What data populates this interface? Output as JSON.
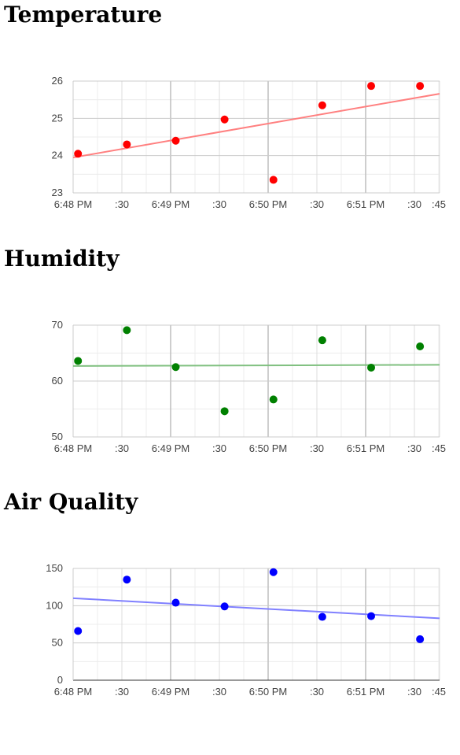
{
  "chart_data": [
    {
      "type": "scatter",
      "title": "Temperature",
      "x_labels": [
        "6:48 PM",
        ":30",
        "6:49 PM",
        ":30",
        "6:50 PM",
        ":30",
        "6:51 PM",
        ":30",
        ":45"
      ],
      "xlim": [
        "6:48:00 PM",
        "6:51:45 PM"
      ],
      "ylim": [
        23,
        26
      ],
      "y_ticks": [
        23,
        24,
        25,
        26
      ],
      "grid": true,
      "color": "#ff0000",
      "trendline_color": "#ff8080",
      "series": [
        {
          "x": [
            "6:48:03 PM",
            "6:48:33 PM",
            "6:49:03 PM",
            "6:49:33 PM",
            "6:50:03 PM",
            "6:50:33 PM",
            "6:51:03 PM",
            "6:51:33 PM"
          ],
          "y": [
            24.05,
            24.3,
            24.4,
            24.97,
            23.35,
            25.35,
            25.87,
            25.87
          ]
        }
      ],
      "trendline": {
        "type": "linear",
        "y_start": 23.95,
        "y_end": 25.66
      }
    },
    {
      "type": "scatter",
      "title": "Humidity",
      "x_labels": [
        "6:48 PM",
        ":30",
        "6:49 PM",
        ":30",
        "6:50 PM",
        ":30",
        "6:51 PM",
        ":30",
        ":45"
      ],
      "xlim": [
        "6:48:00 PM",
        "6:51:45 PM"
      ],
      "ylim": [
        50,
        70
      ],
      "y_ticks": [
        50,
        60,
        70
      ],
      "grid": true,
      "color": "#008000",
      "trendline_color": "#80c080",
      "series": [
        {
          "x": [
            "6:48:03 PM",
            "6:48:33 PM",
            "6:49:03 PM",
            "6:49:33 PM",
            "6:50:03 PM",
            "6:50:33 PM",
            "6:51:03 PM",
            "6:51:33 PM"
          ],
          "y": [
            63.6,
            69.1,
            62.5,
            54.6,
            56.7,
            67.3,
            62.4,
            66.2
          ]
        }
      ],
      "trendline": {
        "type": "linear",
        "y_start": 62.7,
        "y_end": 62.9
      }
    },
    {
      "type": "scatter",
      "title": "Air Quality",
      "x_labels": [
        "6:48 PM",
        ":30",
        "6:49 PM",
        ":30",
        "6:50 PM",
        ":30",
        "6:51 PM",
        ":30",
        ":45"
      ],
      "xlim": [
        "6:48:00 PM",
        "6:51:45 PM"
      ],
      "ylim": [
        0,
        150
      ],
      "y_ticks": [
        0,
        50,
        100,
        150
      ],
      "grid": true,
      "color": "#0000ff",
      "trendline_color": "#8080ff",
      "series": [
        {
          "x": [
            "6:48:03 PM",
            "6:48:33 PM",
            "6:49:03 PM",
            "6:49:33 PM",
            "6:50:03 PM",
            "6:50:33 PM",
            "6:51:03 PM",
            "6:51:33 PM"
          ],
          "y": [
            66,
            135,
            104,
            99,
            145,
            85,
            86,
            55
          ]
        }
      ],
      "trendline": {
        "type": "linear",
        "y_start": 110,
        "y_end": 83
      }
    }
  ]
}
